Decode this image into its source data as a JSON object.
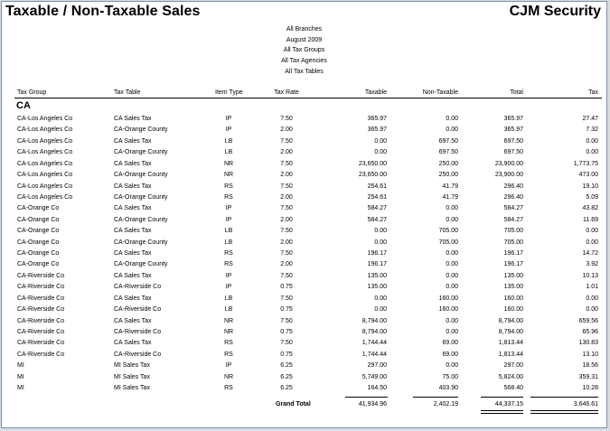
{
  "report": {
    "title": "Taxable / Non-Taxable Sales",
    "company": "CJM Security",
    "filters": [
      "All Branches",
      "August 2009",
      "All Tax Groups",
      "All Tax Agencies",
      "All Tax Tables"
    ]
  },
  "columns": [
    "Tax Group",
    "Tax Table",
    "Item Type",
    "Tax Rate",
    "Taxable",
    "Non-Taxable",
    "Total",
    "Tax"
  ],
  "group_label": "CA",
  "rows": [
    [
      "CA-Los Angeles Co",
      "CA Sales Tax",
      "IP",
      "7.50",
      "365.97",
      "0.00",
      "365.97",
      "27.47"
    ],
    [
      "CA-Los Angeles Co",
      "CA-Orange County",
      "IP",
      "2.00",
      "365.97",
      "0.00",
      "365.97",
      "7.32"
    ],
    [
      "CA-Los Angeles Co",
      "CA Sales Tax",
      "LB",
      "7.50",
      "0.00",
      "697.50",
      "697.50",
      "0.00"
    ],
    [
      "CA-Los Angeles Co",
      "CA-Orange County",
      "LB",
      "2.00",
      "0.00",
      "697.50",
      "697.50",
      "0.00"
    ],
    [
      "CA-Los Angeles Co",
      "CA Sales Tax",
      "NR",
      "7.50",
      "23,650.00",
      "250.00",
      "23,900.00",
      "1,773.75"
    ],
    [
      "CA-Los Angeles Co",
      "CA-Orange County",
      "NR",
      "2.00",
      "23,650.00",
      "250.00",
      "23,900.00",
      "473.00"
    ],
    [
      "CA-Los Angeles Co",
      "CA Sales Tax",
      "RS",
      "7.50",
      "254.61",
      "41.79",
      "296.40",
      "19.10"
    ],
    [
      "CA-Los Angeles Co",
      "CA-Orange County",
      "RS",
      "2.00",
      "254.61",
      "41.79",
      "296.40",
      "5.09"
    ],
    [
      "CA-Orange Co",
      "CA Sales Tax",
      "IP",
      "7.50",
      "584.27",
      "0.00",
      "584.27",
      "43.82"
    ],
    [
      "CA-Orange Co",
      "CA-Orange County",
      "IP",
      "2.00",
      "584.27",
      "0.00",
      "584.27",
      "11.69"
    ],
    [
      "CA-Orange Co",
      "CA Sales Tax",
      "LB",
      "7.50",
      "0.00",
      "705.00",
      "705.00",
      "0.00"
    ],
    [
      "CA-Orange Co",
      "CA-Orange County",
      "LB",
      "2.00",
      "0.00",
      "705.00",
      "705.00",
      "0.00"
    ],
    [
      "CA-Orange Co",
      "CA Sales Tax",
      "RS",
      "7.50",
      "196.17",
      "0.00",
      "196.17",
      "14.72"
    ],
    [
      "CA-Orange Co",
      "CA-Orange County",
      "RS",
      "2.00",
      "196.17",
      "0.00",
      "196.17",
      "3.92"
    ],
    [
      "CA-Riverside Co",
      "CA Sales Tax",
      "IP",
      "7.50",
      "135.00",
      "0.00",
      "135.00",
      "10.13"
    ],
    [
      "CA-Riverside Co",
      "CA-Riverside Co",
      "IP",
      "0.75",
      "135.00",
      "0.00",
      "135.00",
      "1.01"
    ],
    [
      "CA-Riverside Co",
      "CA Sales Tax",
      "LB",
      "7.50",
      "0.00",
      "160.00",
      "160.00",
      "0.00"
    ],
    [
      "CA-Riverside Co",
      "CA-Riverside Co",
      "LB",
      "0.75",
      "0.00",
      "160.00",
      "160.00",
      "0.00"
    ],
    [
      "CA-Riverside Co",
      "CA Sales Tax",
      "NR",
      "7.50",
      "8,794.00",
      "0.00",
      "8,794.00",
      "659.56"
    ],
    [
      "CA-Riverside Co",
      "CA-Riverside Co",
      "NR",
      "0.75",
      "8,794.00",
      "0.00",
      "8,794.00",
      "65.96"
    ],
    [
      "CA-Riverside Co",
      "CA Sales Tax",
      "RS",
      "7.50",
      "1,744.44",
      "69.00",
      "1,813.44",
      "130.83"
    ],
    [
      "CA-Riverside Co",
      "CA-Riverside Co",
      "RS",
      "0.75",
      "1,744.44",
      "69.00",
      "1,813.44",
      "13.10"
    ],
    [
      "MI",
      "MI Sales Tax",
      "IP",
      "6.25",
      "297.00",
      "0.00",
      "297.00",
      "18.56"
    ],
    [
      "MI",
      "MI Sales Tax",
      "NR",
      "6.25",
      "5,749.00",
      "75.00",
      "5,824.00",
      "359.31"
    ],
    [
      "MI",
      "MI Sales Tax",
      "RS",
      "6.25",
      "164.50",
      "403.90",
      "568.40",
      "10.28"
    ]
  ],
  "grand_total": {
    "label": "Grand Total",
    "taxable": "41,934.96",
    "non_taxable": "2,402.19",
    "total": "44,337.15",
    "tax": "3,646.61"
  }
}
